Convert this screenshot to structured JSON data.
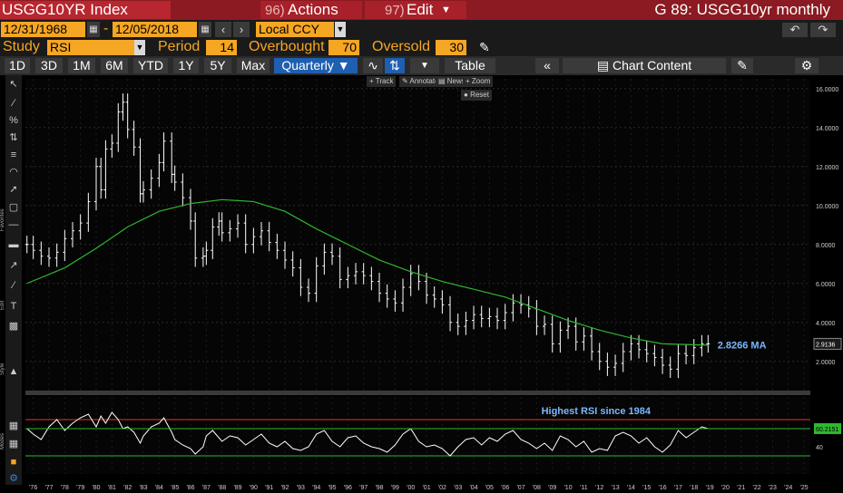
{
  "titlebar": {
    "ticker": "USGG10YR Index",
    "actions_num": "96)",
    "actions_label": "Actions",
    "edit_num": "97)",
    "edit_label": "Edit",
    "chart_title": "G 89: USGG10yr monthly"
  },
  "range": {
    "start": "12/31/1968",
    "dash": "-",
    "end": "12/05/2018",
    "currency": "Local CCY"
  },
  "study": {
    "study_label": "Study",
    "study_value": "RSI",
    "period_label": "Period",
    "period_value": "14",
    "overbought_label": "Overbought",
    "overbought_value": "70",
    "oversold_label": "Oversold",
    "oversold_value": "30"
  },
  "periods": [
    "1D",
    "3D",
    "1M",
    "6M",
    "YTD",
    "1Y",
    "5Y",
    "Max"
  ],
  "frequency": "Quarterly ▼",
  "table_label": "Table",
  "chart_content_label": "Chart Content",
  "mini_toolbar": [
    "Track",
    "Annotate",
    "News",
    "Zoom",
    "Reset"
  ],
  "side_labels": {
    "favorites": "Favorites",
    "edit": "Edit",
    "style": "Style",
    "modes": "Modes"
  },
  "colors": {
    "title_bg": "#8b1a22",
    "amber": "#f5a623",
    "price": "#ffffff",
    "ma": "#2fb62f",
    "rsi_line": "#ffffff",
    "overbought": "#e0322f",
    "label_blue": "#7ab8ff"
  },
  "chart_data": [
    {
      "type": "ohlc",
      "y_ticks": [
        "16.0000",
        "14.0000",
        "12.0000",
        "10.0000",
        "8.0000",
        "6.0000",
        "4.0000",
        "2.0000"
      ],
      "ylim": [
        0.5,
        16.5
      ],
      "x_ticks": [
        "'76",
        "'77",
        "'78",
        "'79",
        "'80",
        "'81",
        "'82",
        "'83",
        "'84",
        "'85",
        "'86",
        "'87",
        "'88",
        "'89",
        "'90",
        "'91",
        "'92",
        "'93",
        "'94",
        "'95",
        "'96",
        "'97",
        "'98",
        "'99",
        "'00",
        "'01",
        "'02",
        "'03",
        "'04",
        "'05",
        "'06",
        "'07",
        "'08",
        "'09",
        "'10",
        "'11",
        "'12",
        "'13",
        "'14",
        "'15",
        "'16",
        "'17",
        "'18",
        "'19",
        "'20",
        "'21",
        "'22",
        "'23",
        "'24",
        "'25"
      ],
      "x_start_year": 1975.5,
      "x_end_year": 2025.4,
      "last_value_label": "2.9136",
      "annotations": [
        {
          "text": "2.8266 MA",
          "year": 2019.5,
          "y": 2.85
        }
      ],
      "series": [
        {
          "name": "price",
          "years": [
            1975.6,
            1976,
            1976.5,
            1977,
            1977.5,
            1978,
            1978.5,
            1979,
            1979.5,
            1980,
            1980.3,
            1980.6,
            1981,
            1981.4,
            1981.7,
            1982,
            1982.4,
            1982.8,
            1983,
            1983.5,
            1984,
            1984.3,
            1984.8,
            1985,
            1985.5,
            1986,
            1986.3,
            1986.8,
            1987,
            1987.4,
            1987.8,
            1988,
            1988.5,
            1989,
            1989.5,
            1990,
            1990.5,
            1991,
            1991.5,
            1992,
            1992.5,
            1993,
            1993.5,
            1994,
            1994.5,
            1995,
            1995.5,
            1996,
            1996.5,
            1997,
            1997.5,
            1998,
            1998.5,
            1999,
            1999.5,
            2000,
            2000.5,
            2001,
            2001.5,
            2002,
            2002.5,
            2003,
            2003.5,
            2004,
            2004.5,
            2005,
            2005.5,
            2006,
            2006.5,
            2007,
            2007.5,
            2008,
            2008.5,
            2009,
            2009.5,
            2010,
            2010.5,
            2011,
            2011.5,
            2012,
            2012.5,
            2013,
            2013.5,
            2014,
            2014.5,
            2015,
            2015.5,
            2016,
            2016.5,
            2017,
            2017.5,
            2018,
            2018.5,
            2018.9
          ],
          "values": [
            8.0,
            7.7,
            7.4,
            7.3,
            7.6,
            8.3,
            8.7,
            9.1,
            10.2,
            12.0,
            10.8,
            12.9,
            13.2,
            14.8,
            15.3,
            13.9,
            13.0,
            10.6,
            10.8,
            11.4,
            12.2,
            13.3,
            11.6,
            11.2,
            10.4,
            9.2,
            7.3,
            7.4,
            7.7,
            8.9,
            9.2,
            8.6,
            8.8,
            9.1,
            8.0,
            8.4,
            8.7,
            8.1,
            7.7,
            7.2,
            6.8,
            5.8,
            5.5,
            6.9,
            7.6,
            7.4,
            6.2,
            6.4,
            6.6,
            6.4,
            6.1,
            5.5,
            5.2,
            5.0,
            5.8,
            6.5,
            6.1,
            5.4,
            5.2,
            4.9,
            4.0,
            3.8,
            4.1,
            4.4,
            4.2,
            4.3,
            4.1,
            4.5,
            5.0,
            4.9,
            4.7,
            3.8,
            3.9,
            2.9,
            3.6,
            3.8,
            3.0,
            3.3,
            2.5,
            2.0,
            1.7,
            1.9,
            2.5,
            2.9,
            2.6,
            2.4,
            2.2,
            1.8,
            1.6,
            2.4,
            2.3,
            2.7,
            2.9,
            2.9
          ]
        },
        {
          "name": "MA",
          "years": [
            1975.6,
            1978,
            1980,
            1982,
            1984,
            1986,
            1988,
            1990,
            1992,
            1994,
            1996,
            1998,
            2000,
            2002,
            2004,
            2006,
            2008,
            2010,
            2012,
            2014,
            2016,
            2018.9
          ],
          "values": [
            6.0,
            6.8,
            7.8,
            8.9,
            9.7,
            10.1,
            10.3,
            10.2,
            9.7,
            8.8,
            8.0,
            7.2,
            6.6,
            6.1,
            5.7,
            5.3,
            4.7,
            4.1,
            3.6,
            3.2,
            2.9,
            2.83
          ]
        }
      ]
    },
    {
      "type": "line",
      "ylim": [
        10,
        95
      ],
      "y_ticks": [
        "60.2151",
        "40"
      ],
      "annotations": [
        {
          "text": "Highest RSI since 1984",
          "year": 2008.3,
          "y": 80
        }
      ],
      "overbought": 70,
      "oversold": 30,
      "series": [
        {
          "name": "RSI",
          "years": [
            1975.6,
            1976,
            1976.5,
            1977,
            1977.5,
            1978,
            1978.5,
            1979,
            1979.5,
            1980,
            1980.3,
            1980.6,
            1981,
            1981.4,
            1981.7,
            1982,
            1982.4,
            1982.8,
            1983,
            1983.5,
            1984,
            1984.3,
            1984.8,
            1985,
            1985.5,
            1986,
            1986.3,
            1986.8,
            1987,
            1987.4,
            1987.8,
            1988,
            1988.5,
            1989,
            1989.5,
            1990,
            1990.5,
            1991,
            1991.5,
            1992,
            1992.5,
            1993,
            1993.5,
            1994,
            1994.5,
            1995,
            1995.5,
            1996,
            1996.5,
            1997,
            1997.5,
            1998,
            1998.5,
            1999,
            1999.5,
            2000,
            2000.5,
            2001,
            2001.5,
            2002,
            2002.5,
            2003,
            2003.5,
            2004,
            2004.5,
            2005,
            2005.5,
            2006,
            2006.5,
            2007,
            2007.5,
            2008,
            2008.5,
            2009,
            2009.5,
            2010,
            2010.5,
            2011,
            2011.5,
            2012,
            2012.5,
            2013,
            2013.5,
            2014,
            2014.5,
            2015,
            2015.5,
            2016,
            2016.5,
            2017,
            2017.5,
            2018,
            2018.5,
            2018.9
          ],
          "values": [
            60,
            54,
            48,
            62,
            70,
            58,
            66,
            72,
            76,
            62,
            74,
            66,
            78,
            70,
            60,
            62,
            56,
            44,
            52,
            62,
            66,
            72,
            56,
            48,
            42,
            38,
            32,
            40,
            52,
            58,
            50,
            46,
            52,
            50,
            42,
            48,
            54,
            44,
            40,
            46,
            38,
            36,
            40,
            54,
            58,
            46,
            40,
            50,
            52,
            44,
            40,
            38,
            34,
            42,
            54,
            60,
            46,
            40,
            42,
            38,
            30,
            40,
            48,
            50,
            42,
            50,
            46,
            54,
            58,
            48,
            44,
            38,
            44,
            36,
            52,
            48,
            40,
            46,
            34,
            38,
            36,
            52,
            56,
            52,
            44,
            50,
            40,
            34,
            42,
            58,
            50,
            56,
            62,
            60
          ]
        }
      ]
    }
  ]
}
